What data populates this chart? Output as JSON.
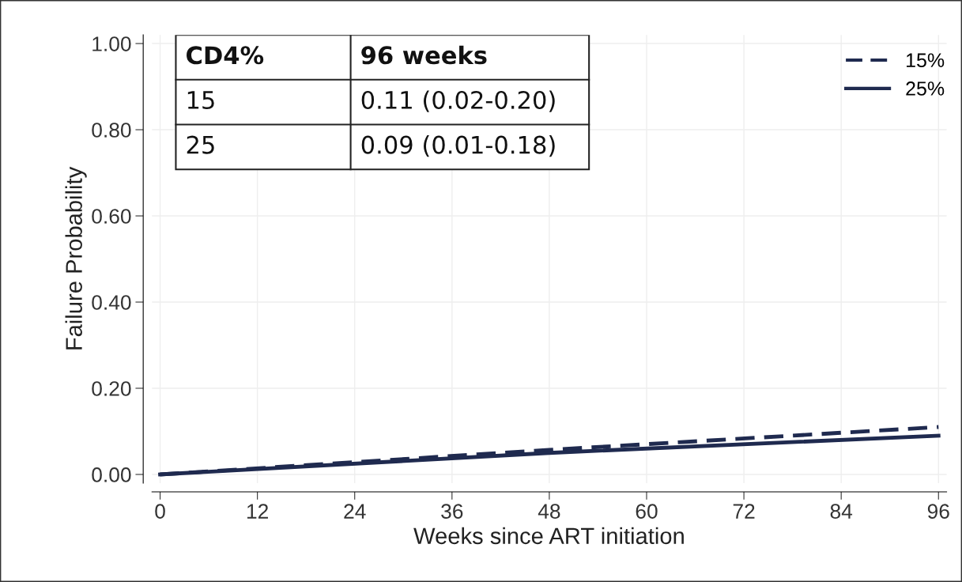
{
  "chart_data": {
    "type": "line",
    "xlabel": "Weeks since ART initiation",
    "ylabel": "Failure Probability",
    "x": [
      0,
      48,
      96
    ],
    "series": [
      {
        "name": "15%",
        "color": "#1f2a4f",
        "values": [
          0,
          0.057,
          0.11
        ],
        "line_style": "dashed"
      },
      {
        "name": "25%",
        "color": "#1f2a4f",
        "values": [
          0,
          0.05,
          0.09
        ],
        "line_style": "solid"
      }
    ],
    "xlim": [
      -1,
      97
    ],
    "ylim": [
      -0.02,
      1.02
    ],
    "xticks": [
      0,
      12,
      24,
      36,
      48,
      60,
      72,
      84,
      96
    ],
    "yticks": [
      {
        "value": 0,
        "label": "0.00"
      },
      {
        "value": 0.2,
        "label": "0.20"
      },
      {
        "value": 0.4,
        "label": "0.40"
      },
      {
        "value": 0.6,
        "label": "0.60"
      },
      {
        "value": 0.8,
        "label": "0.80"
      },
      {
        "value": 1,
        "label": "1.00"
      }
    ],
    "grid": true,
    "legend": "top right",
    "marker": "none",
    "annotations": [
      "CD4%",
      "96 weeks",
      "15",
      "0.11 (0.02-0.20)",
      "25",
      "0.09 (0.01-0.18)"
    ]
  }
}
